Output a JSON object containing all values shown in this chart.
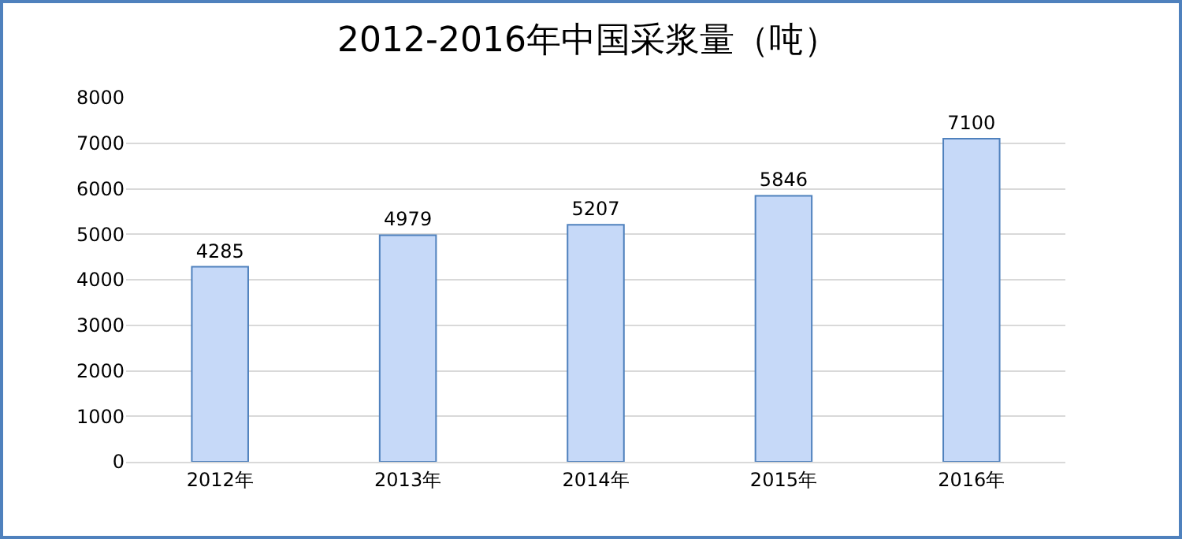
{
  "chart_data": {
    "type": "bar",
    "title": "2012-2016年中国采浆量（吨）",
    "categories": [
      "2012年",
      "2013年",
      "2014年",
      "2015年",
      "2016年"
    ],
    "values": [
      4285,
      4979,
      5207,
      5846,
      7100
    ],
    "color": "#c6d9f8",
    "ylim": [
      0,
      8000
    ],
    "yticks": [
      0,
      1000,
      2000,
      3000,
      4000,
      5000,
      6000,
      7000,
      8000
    ],
    "grid": "y",
    "data_labels": true
  }
}
